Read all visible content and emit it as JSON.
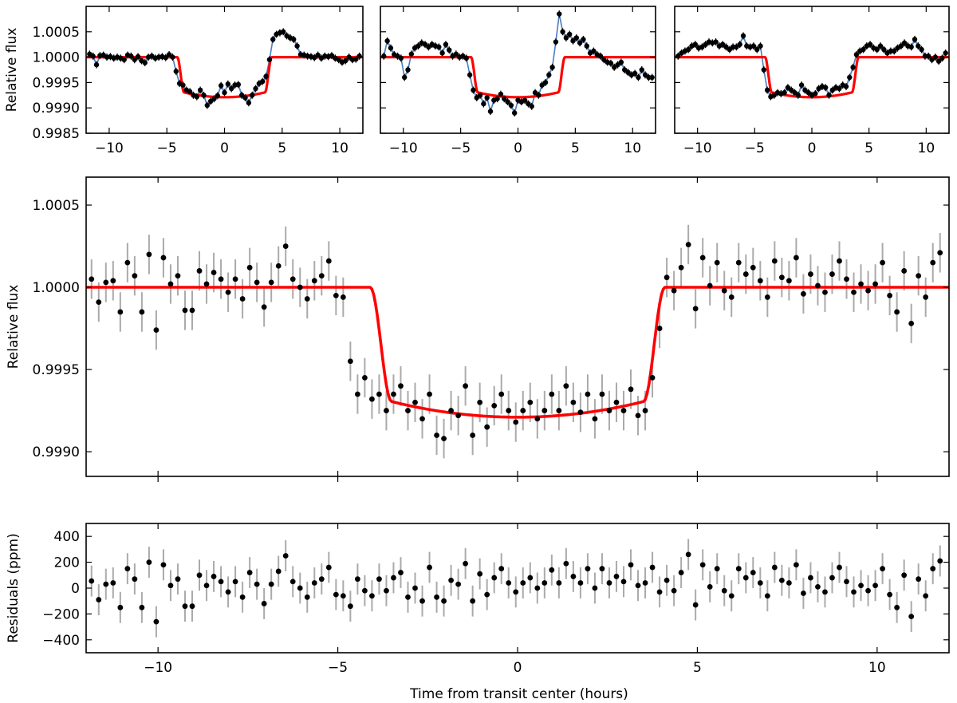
{
  "figure": {
    "xlabel": "Time from transit center (hours)",
    "colors": {
      "model": "#ff0000",
      "gp": "#4a7fc0",
      "gp_band": "#c8d2f5",
      "points": "#000000",
      "errorbars_main": "#aaaaaa",
      "errorbars_small": "#000000"
    }
  },
  "chart_data": [
    {
      "type": "scatter",
      "title": "",
      "panel": "top-left",
      "xlabel": "",
      "ylabel": "Relative flux",
      "xlim": [
        -12,
        12
      ],
      "ylim": [
        0.9985,
        1.001
      ],
      "xticks": [
        -10,
        -5,
        0,
        5,
        10
      ],
      "xtick_labels": [
        "−10",
        "−5",
        "0",
        "5",
        "10"
      ],
      "yticks": [
        0.9985,
        0.999,
        0.9995,
        1.0,
        1.0005
      ],
      "ytick_labels": [
        "0.9985",
        "0.9990",
        "0.9995",
        "1.0000",
        "1.0005"
      ],
      "x": [
        -11.7,
        -11.4,
        -11.1,
        -10.8,
        -10.5,
        -10.2,
        -9.9,
        -9.6,
        -9.3,
        -9.0,
        -8.7,
        -8.4,
        -8.1,
        -7.8,
        -7.5,
        -7.2,
        -6.9,
        -6.6,
        -6.3,
        -6.0,
        -5.7,
        -5.4,
        -5.1,
        -4.8,
        -4.5,
        -4.2,
        -3.9,
        -3.6,
        -3.3,
        -3.0,
        -2.7,
        -2.4,
        -2.1,
        -1.8,
        -1.5,
        -1.2,
        -0.9,
        -0.6,
        -0.3,
        0.0,
        0.3,
        0.6,
        0.9,
        1.2,
        1.5,
        1.8,
        2.1,
        2.4,
        2.7,
        3.0,
        3.3,
        3.6,
        3.9,
        4.2,
        4.5,
        4.8,
        5.1,
        5.4,
        5.7,
        6.0,
        6.3,
        6.6,
        6.9,
        7.2,
        7.5,
        7.8,
        8.1,
        8.4,
        8.7,
        9.0,
        9.3,
        9.6,
        9.9,
        10.2,
        10.5,
        10.8,
        11.1,
        11.4,
        11.7
      ],
      "y": [
        1.00006,
        1.00002,
        0.99985,
        1.00003,
        1.00004,
        1.0,
        1.00001,
        0.99998,
        1.0,
        0.99998,
        0.99995,
        1.00004,
        1.00002,
        0.99995,
        1.00001,
        0.99993,
        0.99989,
        1.0,
        1.00002,
        0.99998,
        1.0,
        1.00001,
        0.99999,
        1.00005,
        1.0,
        0.99972,
        0.99948,
        0.99945,
        0.99935,
        0.99932,
        0.99925,
        0.99922,
        0.99935,
        0.99925,
        0.99905,
        0.99913,
        0.99918,
        0.99924,
        0.99944,
        0.9993,
        0.99947,
        0.99938,
        0.99945,
        0.99946,
        0.99925,
        0.9992,
        0.9991,
        0.99925,
        0.99938,
        0.99948,
        0.99952,
        0.99962,
        0.99995,
        1.00035,
        1.00045,
        1.00048,
        1.0005,
        1.00042,
        1.00038,
        1.00035,
        1.00022,
        1.00005,
        1.00004,
        1.00002,
        1.00001,
        0.99999,
        1.00004,
        0.99998,
        1.00002,
        1.00001,
        1.00003,
        0.99998,
        0.99995,
        0.9999,
        0.99993,
        1.0,
        0.99995,
        0.99996,
        1.00002
      ],
      "yerr": 7e-05,
      "model": "transit: baseline 1.0, depth to ~0.99921 at center, ingress/egress at about ±4 h"
    },
    {
      "type": "scatter",
      "panel": "top-middle",
      "xlabel": "",
      "ylabel": "",
      "xlim": [
        -12,
        12
      ],
      "ylim": [
        0.9985,
        1.001
      ],
      "xticks": [
        -10,
        -5,
        0,
        5,
        10
      ],
      "xtick_labels": [
        "−10",
        "−5",
        "0",
        "5",
        "10"
      ],
      "x": [
        -11.7,
        -11.4,
        -11.1,
        -10.8,
        -10.5,
        -10.2,
        -9.9,
        -9.6,
        -9.3,
        -9.0,
        -8.7,
        -8.4,
        -8.1,
        -7.8,
        -7.5,
        -7.2,
        -6.9,
        -6.6,
        -6.3,
        -6.0,
        -5.7,
        -5.4,
        -5.1,
        -4.8,
        -4.5,
        -4.2,
        -3.9,
        -3.6,
        -3.3,
        -3.0,
        -2.7,
        -2.4,
        -2.1,
        -1.8,
        -1.5,
        -1.2,
        -0.9,
        -0.6,
        -0.3,
        0.0,
        0.3,
        0.6,
        0.9,
        1.2,
        1.5,
        1.8,
        2.1,
        2.4,
        2.7,
        3.0,
        3.3,
        3.6,
        3.9,
        4.2,
        4.5,
        4.8,
        5.1,
        5.4,
        5.7,
        6.0,
        6.3,
        6.6,
        6.9,
        7.2,
        7.5,
        7.8,
        8.1,
        8.4,
        8.7,
        9.0,
        9.3,
        9.6,
        9.9,
        10.2,
        10.5,
        10.8,
        11.1,
        11.4,
        11.7
      ],
      "y": [
        1.00002,
        1.00032,
        1.00018,
        1.00005,
        1.00002,
        0.99998,
        0.9996,
        0.99975,
        1.00006,
        1.00018,
        1.00022,
        1.00028,
        1.00025,
        1.0002,
        1.00025,
        1.00022,
        1.0002,
        1.00008,
        1.00025,
        1.00014,
        1.00002,
        1.00006,
        1.0,
        1.00002,
        0.99998,
        0.99965,
        0.99935,
        0.9992,
        0.99925,
        0.99908,
        0.9992,
        0.99893,
        0.99915,
        0.99918,
        0.99927,
        0.99918,
        0.99912,
        0.99905,
        0.9989,
        0.99915,
        0.99912,
        0.99915,
        0.99908,
        0.99903,
        0.9993,
        0.99925,
        0.99945,
        0.9995,
        0.99965,
        0.9998,
        1.0003,
        1.00085,
        1.0005,
        1.00038,
        1.00045,
        1.00032,
        1.00038,
        1.00028,
        1.00035,
        1.00022,
        1.00008,
        1.00012,
        1.00005,
        1.00002,
        0.99995,
        0.9999,
        0.99988,
        0.9998,
        0.99985,
        0.9999,
        0.99975,
        0.9997,
        0.99965,
        0.99968,
        0.9996,
        0.99975,
        0.99965,
        0.9996,
        0.9996
      ],
      "yerr": 7e-05,
      "model": "transit: baseline 1.0, depth to ~0.99921 at center, ingress/egress at about ±4 h"
    },
    {
      "type": "scatter",
      "panel": "top-right",
      "xlabel": "",
      "ylabel": "",
      "xlim": [
        -12,
        12
      ],
      "ylim": [
        0.9985,
        1.001
      ],
      "xticks": [
        -10,
        -5,
        0,
        5,
        10
      ],
      "xtick_labels": [
        "−10",
        "−5",
        "0",
        "5",
        "10"
      ],
      "x": [
        -11.7,
        -11.4,
        -11.1,
        -10.8,
        -10.5,
        -10.2,
        -9.9,
        -9.6,
        -9.3,
        -9.0,
        -8.7,
        -8.4,
        -8.1,
        -7.8,
        -7.5,
        -7.2,
        -6.9,
        -6.6,
        -6.3,
        -6.0,
        -5.7,
        -5.4,
        -5.1,
        -4.8,
        -4.5,
        -4.2,
        -3.9,
        -3.6,
        -3.3,
        -3.0,
        -2.7,
        -2.4,
        -2.1,
        -1.8,
        -1.5,
        -1.2,
        -0.9,
        -0.6,
        -0.3,
        0.0,
        0.3,
        0.6,
        0.9,
        1.2,
        1.5,
        1.8,
        2.1,
        2.4,
        2.7,
        3.0,
        3.3,
        3.6,
        3.9,
        4.2,
        4.5,
        4.8,
        5.1,
        5.4,
        5.7,
        6.0,
        6.3,
        6.6,
        6.9,
        7.2,
        7.5,
        7.8,
        8.1,
        8.4,
        8.7,
        9.0,
        9.3,
        9.6,
        9.9,
        10.2,
        10.5,
        10.8,
        11.1,
        11.4,
        11.7
      ],
      "y": [
        1.00002,
        1.00008,
        1.00012,
        1.00015,
        1.00022,
        1.00025,
        1.00018,
        1.0002,
        1.00025,
        1.0003,
        1.00028,
        1.0003,
        1.00022,
        1.00025,
        1.0002,
        1.00015,
        1.0002,
        1.0002,
        1.00025,
        1.00042,
        1.00022,
        1.0002,
        1.00022,
        1.00015,
        1.00022,
        0.99975,
        0.99935,
        0.99922,
        0.99925,
        0.9993,
        0.99928,
        0.9993,
        0.9994,
        0.99935,
        0.9993,
        0.99925,
        0.99945,
        0.99935,
        0.9993,
        0.99925,
        0.99928,
        0.99938,
        0.99942,
        0.9994,
        0.99925,
        0.99935,
        0.9994,
        0.99938,
        0.99945,
        0.99942,
        0.9996,
        0.9998,
        1.00005,
        1.00012,
        1.00015,
        1.00022,
        1.00025,
        1.00018,
        1.00015,
        1.00022,
        1.00015,
        1.00008,
        1.00012,
        1.00012,
        1.00018,
        1.00022,
        1.00028,
        1.00022,
        1.0002,
        1.00035,
        1.00022,
        1.00015,
        1.00002,
        1.00002,
        0.99995,
        1.0,
        0.99992,
        0.99998,
        1.00008
      ],
      "yerr": 7e-05,
      "model": "transit: baseline 1.0, depth to ~0.99921 at center, ingress/egress at about ±4 h"
    },
    {
      "type": "scatter",
      "panel": "main",
      "xlabel": "",
      "ylabel": "Relative flux",
      "xlim": [
        -12,
        12
      ],
      "ylim": [
        0.99885,
        1.00067
      ],
      "yticks": [
        0.999,
        0.9995,
        1.0,
        1.0005
      ],
      "ytick_labels": [
        "0.9990",
        "0.9995",
        "1.0000",
        "1.0005"
      ],
      "x": [
        -11.85,
        -11.65,
        -11.45,
        -11.25,
        -11.05,
        -10.85,
        -10.65,
        -10.45,
        -10.25,
        -10.05,
        -9.85,
        -9.65,
        -9.45,
        -9.25,
        -9.05,
        -8.85,
        -8.65,
        -8.45,
        -8.25,
        -8.05,
        -7.85,
        -7.65,
        -7.45,
        -7.25,
        -7.05,
        -6.85,
        -6.65,
        -6.45,
        -6.25,
        -6.05,
        -5.85,
        -5.65,
        -5.45,
        -5.25,
        -5.05,
        -4.85,
        -4.65,
        -4.45,
        -4.25,
        -4.05,
        -3.85,
        -3.65,
        -3.45,
        -3.25,
        -3.05,
        -2.85,
        -2.65,
        -2.45,
        -2.25,
        -2.05,
        -1.85,
        -1.65,
        -1.45,
        -1.25,
        -1.05,
        -0.85,
        -0.65,
        -0.45,
        -0.25,
        -0.05,
        0.15,
        0.35,
        0.55,
        0.75,
        0.95,
        1.15,
        1.35,
        1.55,
        1.75,
        1.95,
        2.15,
        2.35,
        2.55,
        2.75,
        2.95,
        3.15,
        3.35,
        3.55,
        3.75,
        3.95,
        4.15,
        4.35,
        4.55,
        4.75,
        4.95,
        5.15,
        5.35,
        5.55,
        5.75,
        5.95,
        6.15,
        6.35,
        6.55,
        6.75,
        6.95,
        7.15,
        7.35,
        7.55,
        7.75,
        7.95,
        8.15,
        8.35,
        8.55,
        8.75,
        8.95,
        9.15,
        9.35,
        9.55,
        9.75,
        9.95,
        10.15,
        10.35,
        10.55,
        10.75,
        10.95,
        11.15,
        11.35,
        11.55,
        11.75
      ],
      "y": [
        1.00005,
        0.99991,
        1.00003,
        1.00004,
        0.99985,
        1.00015,
        1.00007,
        0.99985,
        1.0002,
        0.99974,
        1.00018,
        1.00002,
        1.00007,
        0.99986,
        0.99986,
        1.0001,
        1.00002,
        1.00009,
        1.00005,
        0.99997,
        1.00005,
        0.99993,
        1.00012,
        1.00003,
        0.99988,
        1.00003,
        1.00013,
        1.00025,
        1.00005,
        1.0,
        0.99993,
        1.00004,
        1.00007,
        1.00016,
        0.99995,
        0.99994,
        0.99955,
        0.99935,
        0.99945,
        0.99932,
        0.99935,
        0.99925,
        0.99935,
        0.9994,
        0.99925,
        0.9993,
        0.9992,
        0.99935,
        0.9991,
        0.99908,
        0.99925,
        0.99922,
        0.9994,
        0.9991,
        0.9993,
        0.99915,
        0.99928,
        0.99935,
        0.99925,
        0.99918,
        0.99925,
        0.9993,
        0.9992,
        0.99925,
        0.99935,
        0.99925,
        0.9994,
        0.9993,
        0.99924,
        0.99935,
        0.9992,
        0.99935,
        0.99925,
        0.9993,
        0.99925,
        0.99938,
        0.99922,
        0.99925,
        0.99945,
        0.99975,
        1.00006,
        0.99998,
        1.00012,
        1.00026,
        0.99987,
        1.00018,
        1.00001,
        1.00015,
        0.99998,
        0.99994,
        1.00015,
        1.00008,
        1.00012,
        1.00004,
        0.99994,
        1.00016,
        1.00006,
        1.00004,
        1.00018,
        0.99996,
        1.00008,
        1.00001,
        0.99997,
        1.00008,
        1.00016,
        1.00005,
        0.99997,
        1.00002,
        0.99998,
        1.00002,
        1.00015,
        0.99995,
        0.99985,
        1.0001,
        0.99978,
        1.00007,
        0.99994,
        1.00015,
        1.00021
      ],
      "yerr": 0.00012,
      "model": "transit: baseline 1.0, center depth ~0.99921, ingress/egress at about ±4 h"
    },
    {
      "type": "scatter",
      "panel": "residuals",
      "xlabel": "Time from transit center (hours)",
      "ylabel": "Residuals (ppm)",
      "xlim": [
        -12,
        12
      ],
      "ylim": [
        -500,
        500
      ],
      "xticks": [
        -10,
        -5,
        0,
        5,
        10
      ],
      "xtick_labels": [
        "−10",
        "−5",
        "0",
        "5",
        "10"
      ],
      "yticks": [
        -400,
        -200,
        0,
        200,
        400
      ],
      "ytick_labels": [
        "−400",
        "−200",
        "0",
        "200",
        "400"
      ],
      "x": [
        -11.85,
        -11.65,
        -11.45,
        -11.25,
        -11.05,
        -10.85,
        -10.65,
        -10.45,
        -10.25,
        -10.05,
        -9.85,
        -9.65,
        -9.45,
        -9.25,
        -9.05,
        -8.85,
        -8.65,
        -8.45,
        -8.25,
        -8.05,
        -7.85,
        -7.65,
        -7.45,
        -7.25,
        -7.05,
        -6.85,
        -6.65,
        -6.45,
        -6.25,
        -6.05,
        -5.85,
        -5.65,
        -5.45,
        -5.25,
        -5.05,
        -4.85,
        -4.65,
        -4.45,
        -4.25,
        -4.05,
        -3.85,
        -3.65,
        -3.45,
        -3.25,
        -3.05,
        -2.85,
        -2.65,
        -2.45,
        -2.25,
        -2.05,
        -1.85,
        -1.65,
        -1.45,
        -1.25,
        -1.05,
        -0.85,
        -0.65,
        -0.45,
        -0.25,
        -0.05,
        0.15,
        0.35,
        0.55,
        0.75,
        0.95,
        1.15,
        1.35,
        1.55,
        1.75,
        1.95,
        2.15,
        2.35,
        2.55,
        2.75,
        2.95,
        3.15,
        3.35,
        3.55,
        3.75,
        3.95,
        4.15,
        4.35,
        4.55,
        4.75,
        4.95,
        5.15,
        5.35,
        5.55,
        5.75,
        5.95,
        6.15,
        6.35,
        6.55,
        6.75,
        6.95,
        7.15,
        7.35,
        7.55,
        7.75,
        7.95,
        8.15,
        8.35,
        8.55,
        8.75,
        8.95,
        9.15,
        9.35,
        9.55,
        9.75,
        9.95,
        10.15,
        10.35,
        10.55,
        10.75,
        10.95,
        11.15,
        11.35,
        11.55,
        11.75
      ],
      "y": [
        55,
        -90,
        30,
        40,
        -150,
        150,
        70,
        -150,
        200,
        -260,
        180,
        20,
        70,
        -140,
        -140,
        100,
        20,
        90,
        50,
        -30,
        50,
        -70,
        120,
        30,
        -120,
        30,
        130,
        250,
        50,
        0,
        -70,
        40,
        70,
        160,
        -50,
        -60,
        -140,
        70,
        -20,
        -60,
        70,
        -20,
        80,
        120,
        -70,
        0,
        -100,
        160,
        -70,
        -100,
        60,
        30,
        190,
        -100,
        110,
        -50,
        80,
        150,
        40,
        -30,
        40,
        80,
        0,
        40,
        140,
        40,
        190,
        90,
        40,
        150,
        0,
        150,
        40,
        90,
        50,
        180,
        20,
        40,
        160,
        -30,
        60,
        -20,
        120,
        260,
        -130,
        180,
        10,
        150,
        -20,
        -60,
        150,
        80,
        120,
        40,
        -60,
        160,
        60,
        40,
        180,
        -40,
        80,
        10,
        -30,
        80,
        160,
        50,
        -30,
        20,
        -20,
        20,
        150,
        -50,
        -150,
        100,
        -220,
        70,
        -60,
        150,
        210
      ],
      "yerr": 120
    }
  ]
}
